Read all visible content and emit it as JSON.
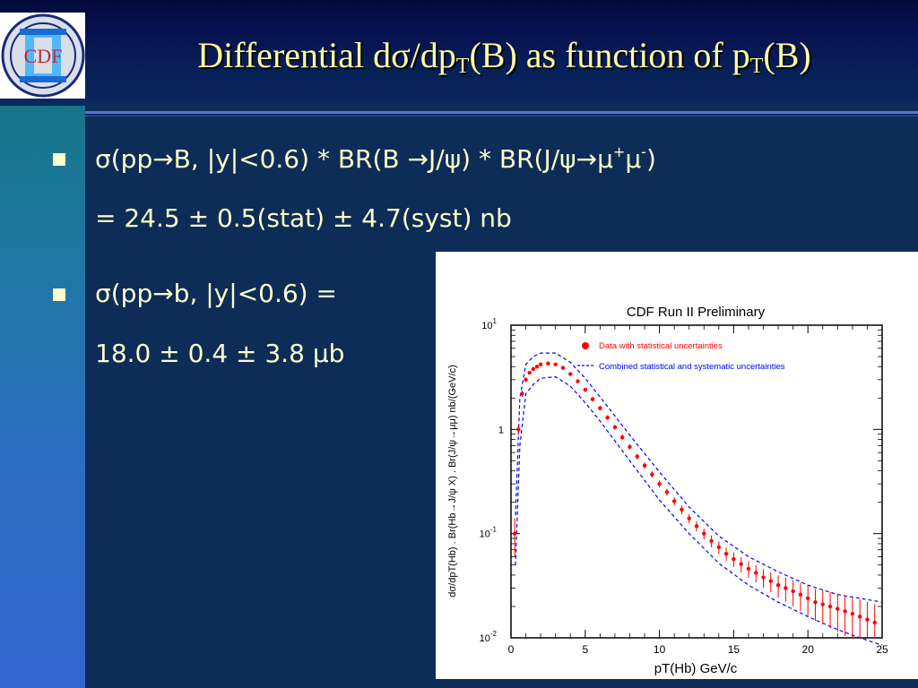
{
  "slide": {
    "title": {
      "part1": "Differential d",
      "sigma": "σ",
      "part2": "/dp",
      "sub1": "T",
      "part3": "(B)  as function of p",
      "sub2": "T",
      "part4": "(B)"
    },
    "logo_text": "CDF",
    "bullets": [
      {
        "line1": "σ(pp→B, |y|<0.6) * BR(B →J/ψ) * BR(J/ψ→μ",
        "line1_sup1": "+",
        "line1_mid": "μ",
        "line1_sup2": "-",
        "line1_end": ")",
        "line2": "= 24.5 ± 0.5(stat) ± 4.7(syst) nb"
      },
      {
        "line1": "σ(pp→b, |y|<0.6) =",
        "line2": "18.0 ± 0.4 ± 3.8 μb"
      }
    ],
    "colors": {
      "title": "#ffff9e",
      "text": "#ffffcc",
      "background": "#0d2c57",
      "data": "#ff0000",
      "band": "#0000ff"
    }
  },
  "chart_data": {
    "type": "scatter",
    "title": "CDF Run II Preliminary",
    "xlabel": "pT(Hb) GeV/c",
    "ylabel": "dσ/dpT(Hb) . Br(Hb→J/ψ X) . Br(J/ψ→μμ) nb/(GeV/c)",
    "xlim": [
      0,
      25
    ],
    "ylim": [
      0.01,
      10
    ],
    "yscale": "log",
    "x_ticks": [
      "0",
      "5",
      "10",
      "15",
      "20",
      "25"
    ],
    "y_ticks": [
      {
        "value": 10,
        "label": "10",
        "exp": "1"
      },
      {
        "value": 1,
        "label": "1",
        "exp": ""
      },
      {
        "value": 0.1,
        "label": "10",
        "exp": "-1"
      },
      {
        "value": 0.01,
        "label": "10",
        "exp": "-2"
      }
    ],
    "legend": [
      {
        "label": "Data with statistical uncertainties",
        "marker": "dot",
        "color": "#ff0000"
      },
      {
        "label": "Combined statistical and systematic uncertainties",
        "marker": "dashed",
        "color": "#0000ff"
      }
    ],
    "legend_position": "top-right",
    "series": [
      {
        "name": "Data with statistical uncertainties",
        "x": [
          0.25,
          0.5,
          0.75,
          1.0,
          1.25,
          1.5,
          1.75,
          2.0,
          2.5,
          3.0,
          3.5,
          4.0,
          4.5,
          5.0,
          5.5,
          6.0,
          6.5,
          7.0,
          7.5,
          8.0,
          8.5,
          9.0,
          9.5,
          10.0,
          10.5,
          11.0,
          11.5,
          12.0,
          12.5,
          13.0,
          13.5,
          14.0,
          14.5,
          15.0,
          15.5,
          16.0,
          16.5,
          17.0,
          17.5,
          18.0,
          18.5,
          19.0,
          19.5,
          20.0,
          20.5,
          21.0,
          21.5,
          22.0,
          22.5,
          23.0,
          23.5,
          24.0,
          24.5
        ],
        "y": [
          0.1,
          1.0,
          2.2,
          3.0,
          3.5,
          3.8,
          4.0,
          4.2,
          4.3,
          4.2,
          3.9,
          3.4,
          2.9,
          2.4,
          1.95,
          1.6,
          1.3,
          1.05,
          0.84,
          0.68,
          0.55,
          0.45,
          0.37,
          0.3,
          0.25,
          0.205,
          0.17,
          0.14,
          0.118,
          0.1,
          0.085,
          0.074,
          0.064,
          0.057,
          0.051,
          0.046,
          0.042,
          0.038,
          0.035,
          0.032,
          0.03,
          0.028,
          0.026,
          0.024,
          0.022,
          0.021,
          0.02,
          0.019,
          0.018,
          0.017,
          0.016,
          0.015,
          0.014
        ],
        "rel_err": [
          0.4,
          0.12,
          0.07,
          0.05,
          0.04,
          0.04,
          0.04,
          0.04,
          0.04,
          0.04,
          0.04,
          0.04,
          0.04,
          0.04,
          0.05,
          0.05,
          0.05,
          0.05,
          0.06,
          0.06,
          0.06,
          0.07,
          0.07,
          0.08,
          0.08,
          0.09,
          0.1,
          0.1,
          0.11,
          0.12,
          0.13,
          0.14,
          0.15,
          0.16,
          0.17,
          0.18,
          0.19,
          0.2,
          0.22,
          0.24,
          0.26,
          0.28,
          0.3,
          0.32,
          0.34,
          0.36,
          0.38,
          0.4,
          0.42,
          0.44,
          0.46,
          0.48,
          0.5
        ]
      },
      {
        "name": "Combined statistical and systematic uncertainties (upper)",
        "x": [
          0.3,
          0.6,
          1.0,
          1.5,
          2.0,
          3.0,
          4.0,
          5.0,
          6.0,
          8.0,
          10.0,
          12.0,
          14.0,
          16.0,
          18.0,
          20.0,
          22.0,
          23.5,
          25.0
        ],
        "y": [
          0.15,
          2.0,
          4.2,
          5.0,
          5.4,
          5.4,
          4.4,
          3.1,
          2.05,
          0.88,
          0.39,
          0.18,
          0.095,
          0.06,
          0.043,
          0.032,
          0.026,
          0.024,
          0.022
        ]
      },
      {
        "name": "Combined statistical and systematic uncertainties (lower)",
        "x": [
          0.3,
          0.6,
          1.0,
          1.5,
          2.0,
          3.0,
          4.0,
          5.0,
          6.0,
          8.0,
          10.0,
          12.0,
          14.0,
          16.0,
          18.0,
          20.0,
          22.0,
          23.5,
          25.0
        ],
        "y": [
          0.05,
          0.7,
          2.2,
          2.7,
          3.1,
          3.2,
          2.6,
          1.8,
          1.2,
          0.5,
          0.21,
          0.1,
          0.052,
          0.032,
          0.022,
          0.016,
          0.012,
          0.01,
          0.0085
        ]
      }
    ]
  }
}
